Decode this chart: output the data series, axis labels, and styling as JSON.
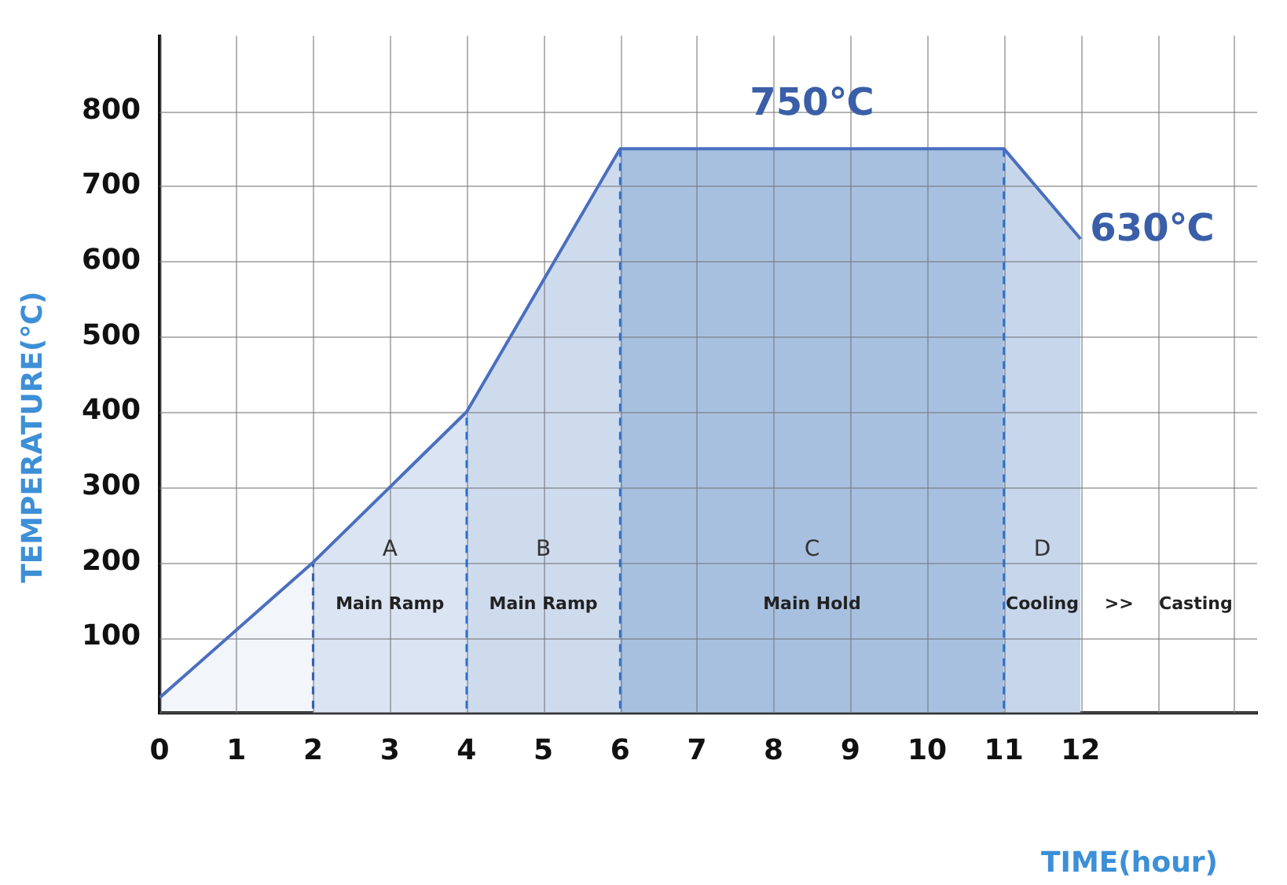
{
  "chart_data": {
    "type": "area",
    "xlabel": "TIME(hour)",
    "ylabel": "TEMPERATURE(℃)",
    "x": [
      0,
      2,
      4,
      6,
      11,
      12
    ],
    "series": [
      {
        "color": "#4a6fbf",
        "values": [
          20,
          200,
          400,
          750,
          750,
          630
        ]
      }
    ],
    "xlim": [
      0,
      14.3
    ],
    "xticks": [
      0,
      1,
      2,
      3,
      4,
      5,
      6,
      7,
      8,
      9,
      10,
      11,
      12,
      {
        "value": 13,
        "label": null
      },
      {
        "value": 14,
        "label": null
      }
    ],
    "ylim": [
      0,
      900
    ],
    "yticks": [
      {
        "value": 0,
        "label": null
      },
      100,
      200,
      300,
      400,
      500,
      600,
      700,
      800
    ],
    "grid": true,
    "legend": false,
    "marker": "none",
    "line_style": "solid",
    "bands": [
      {
        "axis": "x",
        "from": 2,
        "to": 4,
        "label": "A",
        "color": "#e6edf7"
      },
      {
        "axis": "x",
        "from": 4,
        "to": 6,
        "label": "B",
        "color": "#d9e3f1"
      },
      {
        "axis": "x",
        "from": 6,
        "to": 11,
        "label": "C",
        "color": "#b0c6e3"
      },
      {
        "axis": "x",
        "from": 11,
        "to": 12,
        "label": "D",
        "color": "#d1deef"
      }
    ],
    "ref_lines": [
      {
        "axis": "x",
        "value": 2,
        "color": "#3a5fa8",
        "line_style": "dashed"
      }
    ],
    "annotations": [
      {
        "text": "750℃",
        "x": 8.5,
        "y": 750
      },
      {
        "text": "630℃",
        "x": 12,
        "y": 630
      },
      "Main Ramp",
      "Main Ramp",
      "Main Hold",
      "Cooling",
      ">>",
      "Casting"
    ]
  }
}
